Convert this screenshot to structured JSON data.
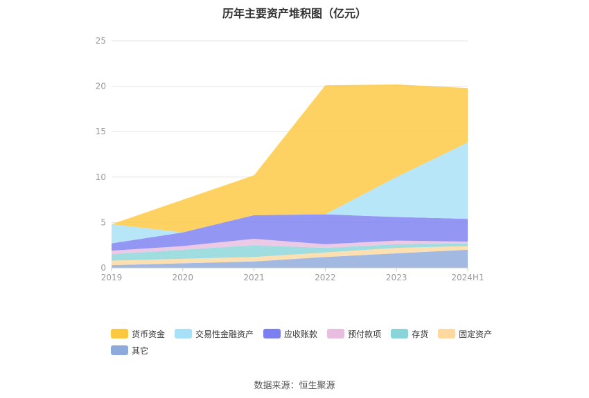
{
  "chart_data": {
    "type": "area",
    "stacked": true,
    "title": "历年主要资产堆积图（亿元）",
    "categories": [
      "2019",
      "2020",
      "2021",
      "2022",
      "2023",
      "2024H1"
    ],
    "ylim": [
      0,
      25
    ],
    "yticks": [
      "0",
      "5",
      "10",
      "15",
      "20",
      "25"
    ],
    "legend_position": "bottom",
    "series": [
      {
        "name": "其它",
        "color": "#8eaadc",
        "values": [
          0.3,
          0.5,
          0.7,
          1.2,
          1.6,
          2.0
        ]
      },
      {
        "name": "固定资产",
        "color": "#fdd9a0",
        "values": [
          0.5,
          0.5,
          0.5,
          0.5,
          0.6,
          0.4
        ]
      },
      {
        "name": "存货",
        "color": "#8ad5da",
        "values": [
          0.7,
          1.0,
          1.3,
          0.5,
          0.4,
          0.3
        ]
      },
      {
        "name": "预付款项",
        "color": "#e8bde0",
        "values": [
          0.4,
          0.4,
          0.7,
          0.4,
          0.4,
          0.2
        ]
      },
      {
        "name": "应收账款",
        "color": "#7b7ff0",
        "values": [
          0.8,
          1.5,
          2.6,
          3.3,
          2.6,
          2.5
        ]
      },
      {
        "name": "交易性金融资产",
        "color": "#a8e0f8",
        "values": [
          2.1,
          0.0,
          0.0,
          0.0,
          4.4,
          8.4
        ]
      },
      {
        "name": "货币资金",
        "color": "#fcc840",
        "values": [
          0.0,
          3.6,
          4.4,
          14.2,
          10.2,
          6.0
        ]
      }
    ],
    "legend_order": [
      "货币资金",
      "交易性金融资产",
      "应收账款",
      "预付款项",
      "存货",
      "固定资产",
      "其它"
    ]
  },
  "source": "数据来源：恒生聚源"
}
